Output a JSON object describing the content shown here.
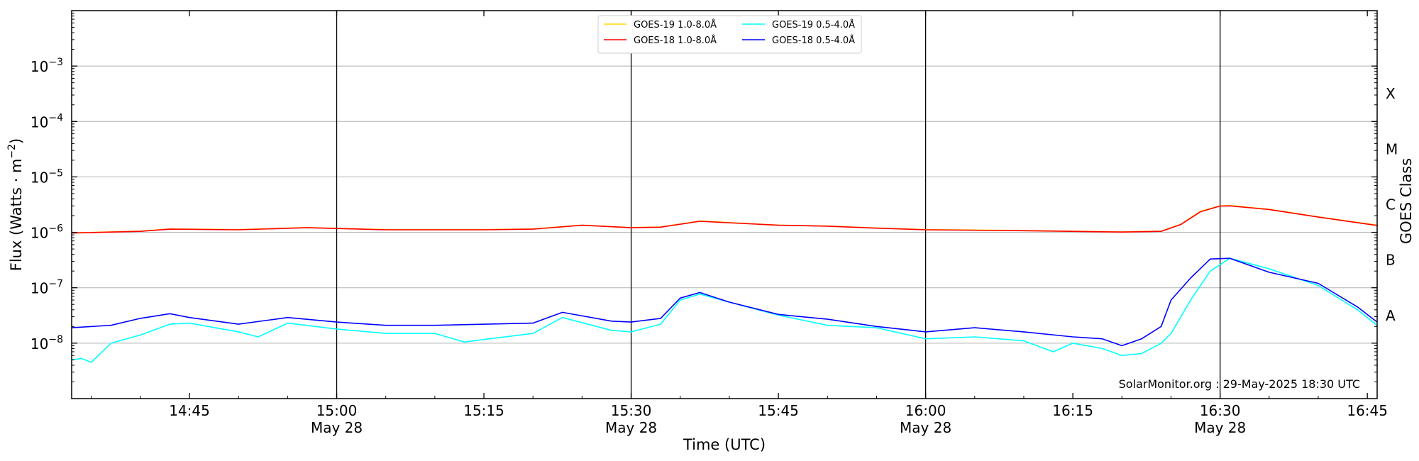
{
  "chart_data": {
    "type": "line",
    "xlabel": "Time (UTC)",
    "ylabel": "Flux (Watts · m^-2)",
    "ylabel_base": "Flux (Watts · m",
    "ylabel_exp": "−2",
    "ylabel_close": ")",
    "y2label": "GOES Class",
    "yscale": "log",
    "xlim": [
      "14:33",
      "16:46"
    ],
    "ylim": [
      1e-09,
      0.01
    ],
    "grid": "horizontal",
    "legend_position": "top-center",
    "stamp": "SolarMonitor.org : 29-May-2025 18:30 UTC",
    "xticks": [
      {
        "t": "14:45",
        "label": "14:45",
        "sub": ""
      },
      {
        "t": "15:00",
        "label": "15:00",
        "sub": "May 28"
      },
      {
        "t": "15:15",
        "label": "15:15",
        "sub": ""
      },
      {
        "t": "15:30",
        "label": "15:30",
        "sub": "May 28"
      },
      {
        "t": "15:45",
        "label": "15:45",
        "sub": ""
      },
      {
        "t": "16:00",
        "label": "16:00",
        "sub": "May 28"
      },
      {
        "t": "16:15",
        "label": "16:15",
        "sub": ""
      },
      {
        "t": "16:30",
        "label": "16:30",
        "sub": "May 28"
      },
      {
        "t": "16:45",
        "label": "16:45",
        "sub": ""
      }
    ],
    "vlines": [
      "15:00",
      "15:30",
      "16:00",
      "16:30"
    ],
    "yticks": [
      {
        "exp": -3,
        "base": "10",
        "sup": "−3"
      },
      {
        "exp": -4,
        "base": "10",
        "sup": "−4"
      },
      {
        "exp": -5,
        "base": "10",
        "sup": "−5"
      },
      {
        "exp": -6,
        "base": "10",
        "sup": "−6"
      },
      {
        "exp": -7,
        "base": "10",
        "sup": "−7"
      },
      {
        "exp": -8,
        "base": "10",
        "sup": "−8"
      }
    ],
    "classes": [
      {
        "label": "X",
        "exp": -3.5
      },
      {
        "label": "M",
        "exp": -4.5
      },
      {
        "label": "C",
        "exp": -5.5
      },
      {
        "label": "B",
        "exp": -6.5
      },
      {
        "label": "A",
        "exp": -7.5
      }
    ],
    "legend": [
      {
        "name": "GOES-19 1.0-8.0Å",
        "color": "#ffd700"
      },
      {
        "name": "GOES-19 0.5-4.0Å",
        "color": "#00ffff"
      },
      {
        "name": "GOES-18 1.0-8.0Å",
        "color": "#ff0000"
      },
      {
        "name": "GOES-18 0.5-4.0Å",
        "color": "#0000ff"
      }
    ],
    "series": [
      {
        "name": "GOES-19 1.0-8.0Å",
        "color": "#ffd700",
        "x": [
          "14:33",
          "14:40",
          "14:43",
          "14:50",
          "14:57",
          "15:05",
          "15:15",
          "15:20",
          "15:25",
          "15:30",
          "15:33",
          "15:37",
          "15:45",
          "15:50",
          "15:55",
          "16:00",
          "16:10",
          "16:20",
          "16:24",
          "16:26",
          "16:28",
          "16:30",
          "16:31",
          "16:35",
          "16:40",
          "16:46"
        ],
        "y": [
          9.8e-07,
          1.05e-06,
          1.15e-06,
          1.12e-06,
          1.22e-06,
          1.12e-06,
          1.12e-06,
          1.15e-06,
          1.35e-06,
          1.22e-06,
          1.25e-06,
          1.6e-06,
          1.35e-06,
          1.3e-06,
          1.2e-06,
          1.12e-06,
          1.08e-06,
          1.02e-06,
          1.05e-06,
          1.4e-06,
          2.4e-06,
          3e-06,
          3.05e-06,
          2.6e-06,
          1.9e-06,
          1.35e-06
        ]
      },
      {
        "name": "GOES-18 1.0-8.0Å",
        "color": "#ff0000",
        "x": [
          "14:33",
          "14:40",
          "14:43",
          "14:50",
          "14:57",
          "15:05",
          "15:15",
          "15:20",
          "15:25",
          "15:30",
          "15:33",
          "15:37",
          "15:45",
          "15:50",
          "15:55",
          "16:00",
          "16:10",
          "16:20",
          "16:24",
          "16:26",
          "16:28",
          "16:30",
          "16:31",
          "16:35",
          "16:40",
          "16:46"
        ],
        "y": [
          9.7e-07,
          1.04e-06,
          1.14e-06,
          1.11e-06,
          1.21e-06,
          1.11e-06,
          1.11e-06,
          1.14e-06,
          1.34e-06,
          1.21e-06,
          1.24e-06,
          1.58e-06,
          1.34e-06,
          1.29e-06,
          1.19e-06,
          1.11e-06,
          1.07e-06,
          1.01e-06,
          1.04e-06,
          1.38e-06,
          2.35e-06,
          2.98e-06,
          3e-06,
          2.58e-06,
          1.88e-06,
          1.33e-06
        ]
      },
      {
        "name": "GOES-19 0.5-4.0Å",
        "color": "#00ffff",
        "x": [
          "14:33",
          "14:34",
          "14:35",
          "14:37",
          "14:40",
          "14:43",
          "14:45",
          "14:50",
          "14:52",
          "14:55",
          "15:00",
          "15:05",
          "15:10",
          "15:13",
          "15:20",
          "15:23",
          "15:28",
          "15:30",
          "15:33",
          "15:35",
          "15:37",
          "15:40",
          "15:45",
          "15:50",
          "15:55",
          "16:00",
          "16:05",
          "16:10",
          "16:13",
          "16:15",
          "16:18",
          "16:20",
          "16:22",
          "16:24",
          "16:25",
          "16:27",
          "16:29",
          "16:31",
          "16:35",
          "16:40",
          "16:44",
          "16:46"
        ],
        "y": [
          5e-09,
          5.3e-09,
          4.5e-09,
          1e-08,
          1.4e-08,
          2.2e-08,
          2.3e-08,
          1.6e-08,
          1.3e-08,
          2.3e-08,
          1.8e-08,
          1.5e-08,
          1.5e-08,
          1.05e-08,
          1.5e-08,
          2.9e-08,
          1.7e-08,
          1.6e-08,
          2.2e-08,
          6e-08,
          7.7e-08,
          5.5e-08,
          3.2e-08,
          2.1e-08,
          1.9e-08,
          1.2e-08,
          1.3e-08,
          1.1e-08,
          7e-09,
          1e-08,
          8e-09,
          6e-09,
          6.5e-09,
          1e-08,
          1.5e-08,
          6e-08,
          2e-07,
          3.4e-07,
          2.2e-07,
          1.1e-07,
          4e-08,
          2.1e-08
        ]
      },
      {
        "name": "GOES-18 0.5-4.0Å",
        "color": "#0000ff",
        "x": [
          "14:33",
          "14:37",
          "14:40",
          "14:43",
          "14:45",
          "14:50",
          "14:55",
          "15:00",
          "15:05",
          "15:10",
          "15:20",
          "15:23",
          "15:28",
          "15:30",
          "15:33",
          "15:35",
          "15:37",
          "15:40",
          "15:45",
          "15:50",
          "15:55",
          "16:00",
          "16:05",
          "16:10",
          "16:15",
          "16:18",
          "16:20",
          "16:22",
          "16:24",
          "16:25",
          "16:27",
          "16:29",
          "16:31",
          "16:35",
          "16:40",
          "16:44",
          "16:46"
        ],
        "y": [
          1.9e-08,
          2.1e-08,
          2.8e-08,
          3.4e-08,
          2.9e-08,
          2.2e-08,
          2.9e-08,
          2.4e-08,
          2.1e-08,
          2.1e-08,
          2.3e-08,
          3.6e-08,
          2.5e-08,
          2.4e-08,
          2.8e-08,
          6.5e-08,
          8.2e-08,
          5.5e-08,
          3.3e-08,
          2.7e-08,
          2e-08,
          1.6e-08,
          1.9e-08,
          1.6e-08,
          1.3e-08,
          1.2e-08,
          9e-09,
          1.2e-08,
          2e-08,
          6e-08,
          1.5e-07,
          3.3e-07,
          3.4e-07,
          1.9e-07,
          1.2e-07,
          4.5e-08,
          2.4e-08
        ]
      }
    ]
  }
}
